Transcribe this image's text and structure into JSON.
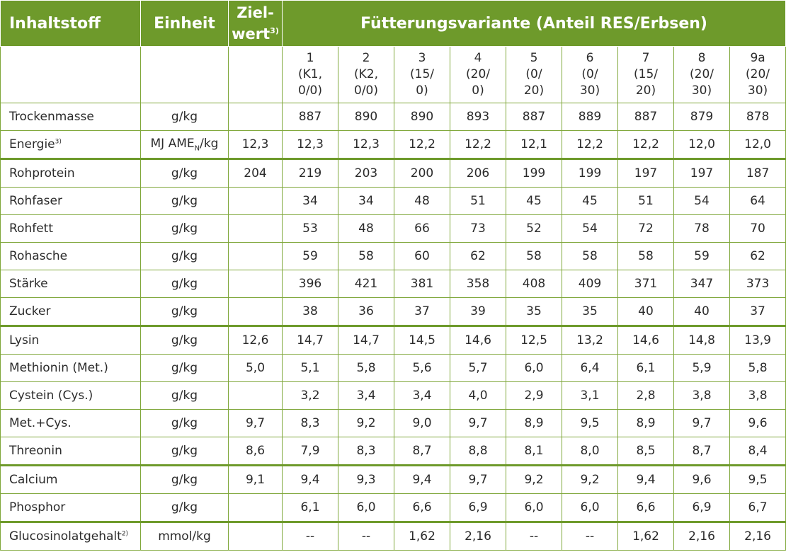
{
  "header": {
    "col_substance": "Inhaltstoff",
    "col_unit": "Einheit",
    "col_target_l1": "Ziel-",
    "col_target_l2": "wert",
    "col_target_sup": "3)",
    "col_variants": "Fütterungsvariante (Anteil RES/Erbsen)"
  },
  "variants": [
    {
      "l1": "1",
      "l2": "(K1,",
      "l3": "0/0)"
    },
    {
      "l1": "2",
      "l2": "(K2,",
      "l3": "0/0)"
    },
    {
      "l1": "3",
      "l2": "(15/",
      "l3": "0)"
    },
    {
      "l1": "4",
      "l2": "(20/",
      "l3": "0)"
    },
    {
      "l1": "5",
      "l2": "(0/",
      "l3": "20)"
    },
    {
      "l1": "6",
      "l2": "(0/",
      "l3": "30)"
    },
    {
      "l1": "7",
      "l2": "(15/",
      "l3": "20)"
    },
    {
      "l1": "8",
      "l2": "(20/",
      "l3": "30)"
    },
    {
      "l1": "9a",
      "l2": "(20/",
      "l3": "30)"
    }
  ],
  "rows": [
    {
      "name": "Trockenmasse",
      "unit": "g/kg",
      "target": "",
      "values": [
        "887",
        "890",
        "890",
        "893",
        "887",
        "889",
        "887",
        "879",
        "878"
      ]
    },
    {
      "name": "Energie",
      "name_sup": "3)",
      "unit": "MJ AME",
      "unit_sub": "N",
      "unit_suffix": "/kg",
      "target": "12,3",
      "values": [
        "12,3",
        "12,3",
        "12,2",
        "12,2",
        "12,1",
        "12,2",
        "12,2",
        "12,0",
        "12,0"
      ]
    },
    {
      "name": "Rohprotein",
      "unit": "g/kg",
      "target": "204",
      "values": [
        "219",
        "203",
        "200",
        "206",
        "199",
        "199",
        "197",
        "197",
        "187"
      ]
    },
    {
      "name": "Rohfaser",
      "unit": "g/kg",
      "target": "",
      "values": [
        "34",
        "34",
        "48",
        "51",
        "45",
        "45",
        "51",
        "54",
        "64"
      ]
    },
    {
      "name": "Rohfett",
      "unit": "g/kg",
      "target": "",
      "values": [
        "53",
        "48",
        "66",
        "73",
        "52",
        "54",
        "72",
        "78",
        "70"
      ]
    },
    {
      "name": "Rohasche",
      "unit": "g/kg",
      "target": "",
      "values": [
        "59",
        "58",
        "60",
        "62",
        "58",
        "58",
        "58",
        "59",
        "62"
      ]
    },
    {
      "name": "Stärke",
      "unit": "g/kg",
      "target": "",
      "values": [
        "396",
        "421",
        "381",
        "358",
        "408",
        "409",
        "371",
        "347",
        "373"
      ]
    },
    {
      "name": "Zucker",
      "unit": "g/kg",
      "target": "",
      "values": [
        "38",
        "36",
        "37",
        "39",
        "35",
        "35",
        "40",
        "40",
        "37"
      ]
    },
    {
      "name": "Lysin",
      "unit": "g/kg",
      "target": "12,6",
      "values": [
        "14,7",
        "14,7",
        "14,5",
        "14,6",
        "12,5",
        "13,2",
        "14,6",
        "14,8",
        "13,9"
      ]
    },
    {
      "name": "Methionin (Met.)",
      "unit": "g/kg",
      "target": "5,0",
      "values": [
        "5,1",
        "5,8",
        "5,6",
        "5,7",
        "6,0",
        "6,4",
        "6,1",
        "5,9",
        "5,8"
      ]
    },
    {
      "name": "Cystein (Cys.)",
      "unit": "g/kg",
      "target": "",
      "values": [
        "3,2",
        "3,4",
        "3,4",
        "4,0",
        "2,9",
        "3,1",
        "2,8",
        "3,8",
        "3,8"
      ]
    },
    {
      "name": "Met.+Cys.",
      "unit": "g/kg",
      "target": "9,7",
      "values": [
        "8,3",
        "9,2",
        "9,0",
        "9,7",
        "8,9",
        "9,5",
        "8,9",
        "9,7",
        "9,6"
      ]
    },
    {
      "name": "Threonin",
      "unit": "g/kg",
      "target": "8,6",
      "values": [
        "7,9",
        "8,3",
        "8,7",
        "8,8",
        "8,1",
        "8,0",
        "8,5",
        "8,7",
        "8,4"
      ]
    },
    {
      "name": "Calcium",
      "unit": "g/kg",
      "target": "9,1",
      "values": [
        "9,4",
        "9,3",
        "9,4",
        "9,7",
        "9,2",
        "9,2",
        "9,4",
        "9,6",
        "9,5"
      ]
    },
    {
      "name": "Phosphor",
      "unit": "g/kg",
      "target": "",
      "values": [
        "6,1",
        "6,0",
        "6,6",
        "6,9",
        "6,0",
        "6,0",
        "6,6",
        "6,9",
        "6,7"
      ]
    },
    {
      "name": "Glucosinolatgehalt",
      "name_sup": "2)",
      "unit": "mmol/kg",
      "target": "",
      "values": [
        "--",
        "--",
        "1,62",
        "2,16",
        "--",
        "--",
        "1,62",
        "2,16",
        "2,16"
      ]
    }
  ],
  "group_separator_after_rows": [
    1,
    7,
    12,
    14
  ],
  "colors": {
    "header_bg": "#6e9a2b",
    "border": "#7fa73a",
    "text": "#2b2b2b"
  }
}
